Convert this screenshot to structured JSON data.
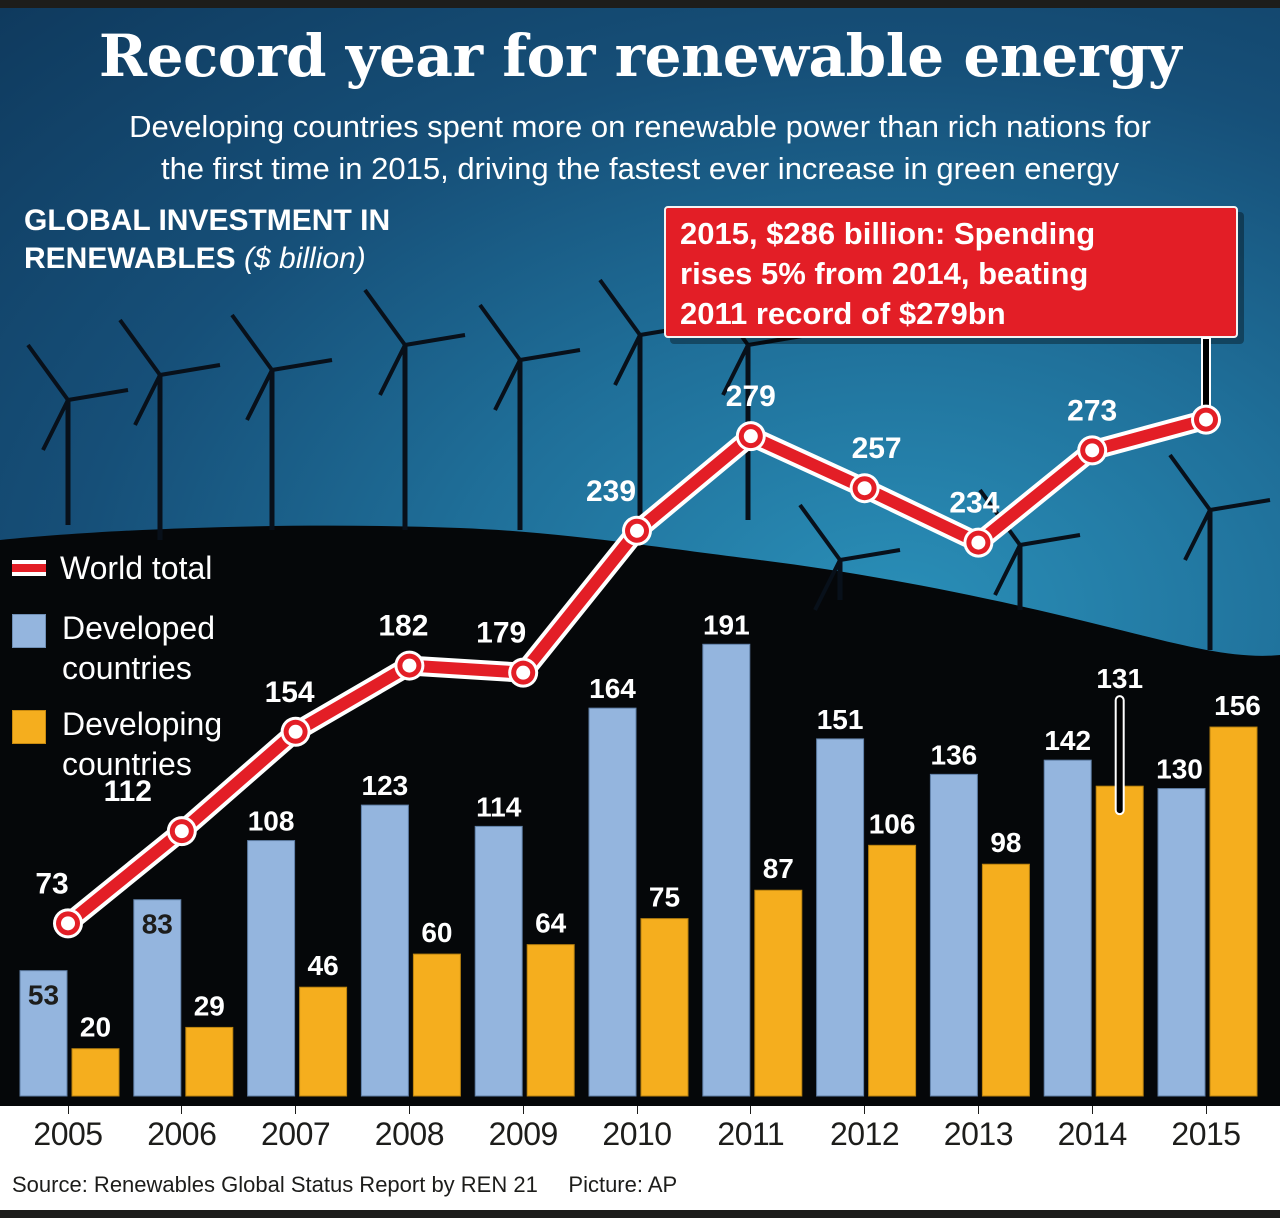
{
  "header": {
    "title": "Record year for renewable energy",
    "subtitle_line1": "Developing countries spent more on renewable power than rich nations for",
    "subtitle_line2": "the first time in 2015, driving the fastest ever increase in green energy"
  },
  "chart_heading": {
    "line1": "GLOBAL INVESTMENT IN",
    "line2": "RENEWABLES",
    "unit": "($ billion)"
  },
  "callout": {
    "line1": "2015, $286 billion: Spending",
    "line2": "rises 5% from 2014, beating",
    "line3": "2011 record of $279bn"
  },
  "legend": {
    "world_total": "World total",
    "developed_line1": "Developed",
    "developed_line2": "countries",
    "developing_line1": "Developing",
    "developing_line2": "countries"
  },
  "colors": {
    "world_total": "#e31e26",
    "developed": "#94b5de",
    "developing": "#f5ae1e",
    "background_dark": "#050709"
  },
  "footer": {
    "source": "Source: Renewables Global Status Report by REN 21     Picture: AP"
  },
  "chart_data": {
    "type": "bar",
    "title": "GLOBAL INVESTMENT IN RENEWABLES ($ billion)",
    "xlabel": "",
    "ylabel": "$ billion",
    "categories": [
      "2005",
      "2006",
      "2007",
      "2008",
      "2009",
      "2010",
      "2011",
      "2012",
      "2013",
      "2014",
      "2015"
    ],
    "series": [
      {
        "name": "Developed countries",
        "kind": "bar",
        "values": [
          53,
          83,
          108,
          123,
          114,
          164,
          191,
          151,
          136,
          142,
          130
        ]
      },
      {
        "name": "Developing countries",
        "kind": "bar",
        "values": [
          20,
          29,
          46,
          60,
          64,
          75,
          87,
          106,
          98,
          131,
          156
        ]
      },
      {
        "name": "World total",
        "kind": "line",
        "values": [
          73,
          112,
          154,
          182,
          179,
          239,
          279,
          257,
          234,
          273,
          286
        ]
      }
    ],
    "data_labels": {
      "world_total_shown": [
        "73",
        "112",
        "154",
        "182",
        "179",
        "239",
        "279",
        "257",
        "234",
        "273",
        ""
      ]
    },
    "annotation": "2015, $286 billion: Spending rises 5% from 2014, beating 2011 record of $279bn",
    "ylim": [
      0,
      300
    ],
    "grid": false,
    "legend_position": "left"
  }
}
